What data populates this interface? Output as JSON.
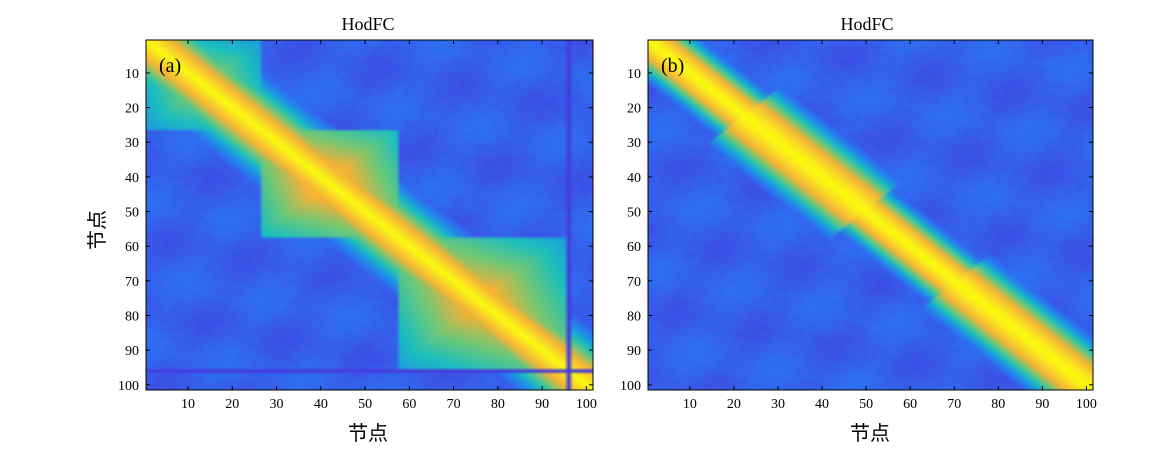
{
  "chart_data": [
    {
      "type": "heatmap",
      "panel_label": "(a)",
      "title": "HodFC",
      "xlabel": "节点",
      "ylabel": "节点",
      "size": 101,
      "xlim": [
        0.5,
        101.5
      ],
      "ylim": [
        101.5,
        0.5
      ],
      "x_ticks": [
        10,
        20,
        30,
        40,
        50,
        60,
        70,
        80,
        90,
        100
      ],
      "y_ticks": [
        10,
        20,
        30,
        40,
        50,
        60,
        70,
        80,
        90,
        100
      ],
      "x_tick_labels": [
        "10",
        "20",
        "30",
        "40",
        "50",
        "60",
        "70",
        "80",
        "90",
        "100"
      ],
      "y_tick_labels": [
        "10",
        "20",
        "30",
        "40",
        "50",
        "60",
        "70",
        "80",
        "90",
        "100"
      ],
      "value_range": [
        0,
        1
      ],
      "colormap": "parula",
      "structure": "block-diagonal correlation with bright diagonal; blocks approx nodes 1-26, 26-57, 57-95, 95-101",
      "blocks": [
        {
          "start": 1,
          "end": 26,
          "level": 0.72
        },
        {
          "start": 26,
          "end": 57,
          "level": 0.85
        },
        {
          "start": 57,
          "end": 95,
          "level": 0.82
        },
        {
          "start": 95,
          "end": 101,
          "level": 0.75
        }
      ],
      "dark_lines_at": [
        95,
        101
      ],
      "off_block_level": 0.22
    },
    {
      "type": "heatmap",
      "panel_label": "(b)",
      "title": "HodFC",
      "xlabel": "节点",
      "ylabel": "",
      "size": 101,
      "xlim": [
        0.5,
        101.5
      ],
      "ylim": [
        101.5,
        0.5
      ],
      "x_ticks": [
        10,
        20,
        30,
        40,
        50,
        60,
        70,
        80,
        90,
        100
      ],
      "y_ticks": [
        10,
        20,
        30,
        40,
        50,
        60,
        70,
        80,
        90,
        100
      ],
      "x_tick_labels": [
        "10",
        "20",
        "30",
        "40",
        "50",
        "60",
        "70",
        "80",
        "90",
        "100"
      ],
      "y_tick_labels": [
        "10",
        "20",
        "30",
        "40",
        "50",
        "60",
        "70",
        "80",
        "90",
        "100"
      ],
      "value_range": [
        0,
        1
      ],
      "colormap": "parula",
      "structure": "smooth diagonal band with orange widening between nodes ~25-50 and ~70-100",
      "band_width_nodes": 12,
      "off_block_level": 0.22
    }
  ],
  "colors": {
    "parula_low": "#3e26a8",
    "parula_mid_blue": "#2f6bf0",
    "parula_cyan": "#1bbfbe",
    "parula_orange": "#f5b136",
    "parula_high": "#f9fb0e",
    "axis": "#000000"
  }
}
